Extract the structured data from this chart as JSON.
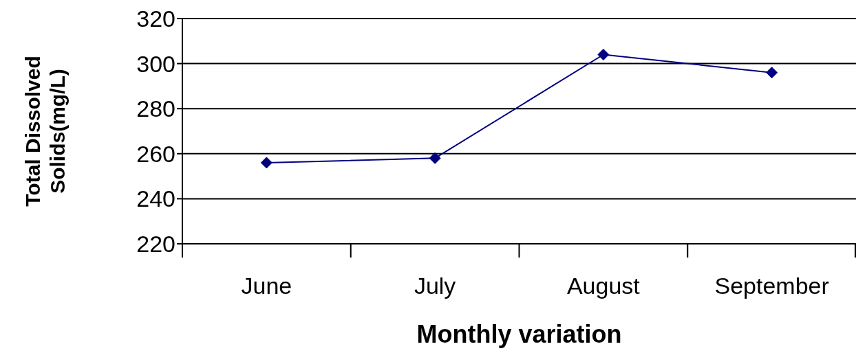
{
  "chart_data": {
    "type": "line",
    "xlabel": "Monthly variation",
    "ylabel": "Total Dissolved Solids(mg/L)",
    "categories": [
      "June",
      "July",
      "August",
      "September"
    ],
    "series": [
      {
        "color": "#000080",
        "values": [
          256,
          258,
          304,
          296
        ]
      }
    ],
    "ylim": [
      220,
      320
    ],
    "yticks": [
      220,
      240,
      260,
      280,
      300,
      320
    ],
    "grid": "y",
    "marker": "diamond",
    "line_style": "solid"
  }
}
